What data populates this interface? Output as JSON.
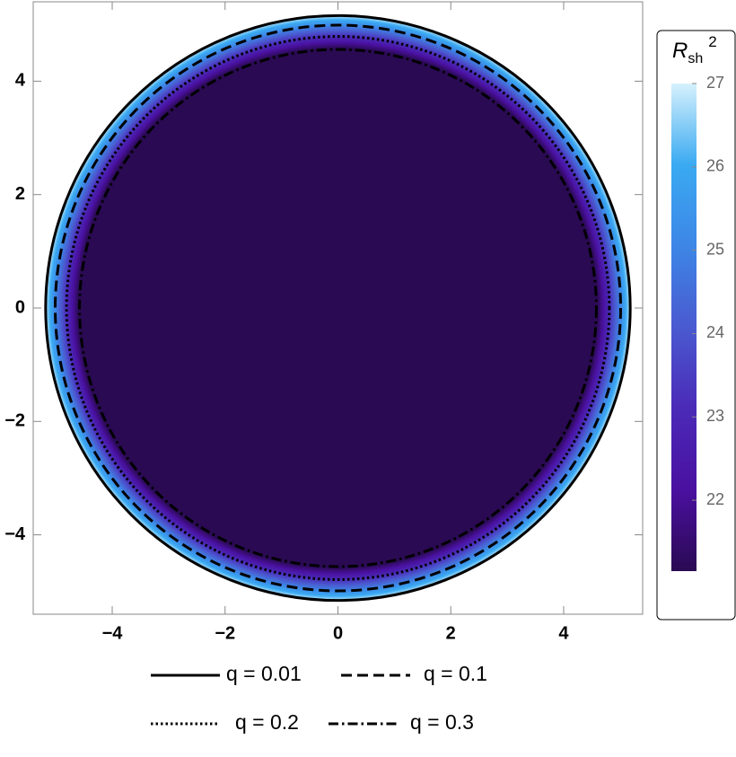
{
  "chart_data": {
    "type": "density_contour",
    "xlim": [
      -5.4,
      5.4
    ],
    "ylim": [
      -5.4,
      5.4
    ],
    "xticks": [
      {
        "value": -4,
        "label": "−4"
      },
      {
        "value": -2,
        "label": "−2"
      },
      0,
      2,
      4
    ],
    "yticks": [
      {
        "value": -4,
        "label": "−4"
      },
      {
        "value": -2,
        "label": "−2"
      },
      0,
      2,
      4
    ],
    "colorbar_title": {
      "base": "R",
      "subscript": "sh",
      "superscript": "2"
    },
    "colorlim": [
      21.15,
      27
    ],
    "colorbar_ticks": [
      22,
      23,
      24,
      25,
      26,
      27
    ],
    "colormap": [
      "#2a0a52",
      "#4a10a0",
      "#4b2ab8",
      "#4a5ad0",
      "#3d86e6",
      "#3aaaf2",
      "#d6f1fc"
    ],
    "series": [
      {
        "name": "q = 0.01",
        "style": "solid",
        "color": "#000000",
        "radius": 5.18
      },
      {
        "name": "q = 0.1",
        "style": "dashed",
        "color": "#000000",
        "radius": 5.01
      },
      {
        "name": "q = 0.2",
        "style": "dotted",
        "color": "#000000",
        "radius": 4.81
      },
      {
        "name": "q = 0.3",
        "style": "dashdot",
        "color": "#000000",
        "radius": 4.58
      }
    ]
  }
}
